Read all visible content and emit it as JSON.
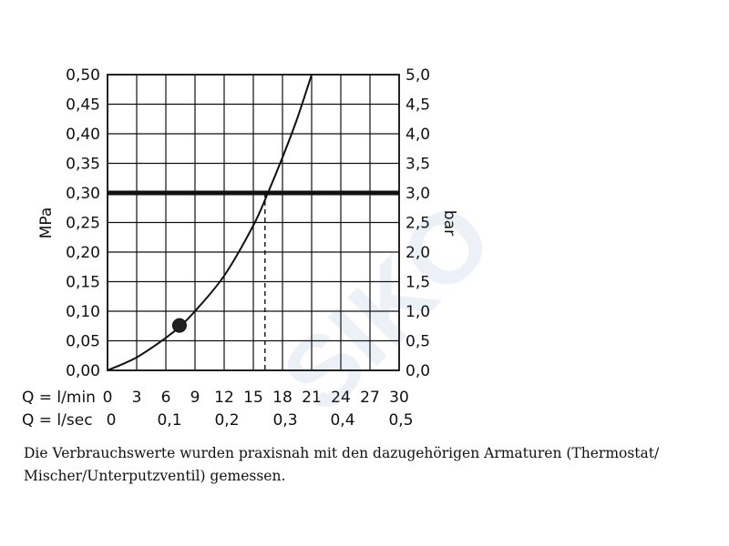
{
  "chart_data": {
    "type": "line",
    "y_left": {
      "label": "MPa",
      "ticks": [
        "0,00",
        "0,05",
        "0,10",
        "0,15",
        "0,20",
        "0,25",
        "0,30",
        "0,35",
        "0,40",
        "0,45",
        "0,50"
      ],
      "range": [
        0,
        0.5
      ]
    },
    "y_right": {
      "label": "bar",
      "ticks": [
        "0,0",
        "0,5",
        "1,0",
        "1,5",
        "2,0",
        "2,5",
        "3,0",
        "3,5",
        "4,0",
        "4,5",
        "5,0"
      ],
      "range": [
        0,
        5
      ]
    },
    "x": {
      "range": [
        0,
        30
      ],
      "row1_label": "Q = l/min",
      "row1_ticks": [
        "0",
        "3",
        "6",
        "9",
        "12",
        "15",
        "18",
        "21",
        "24",
        "27",
        "30"
      ],
      "row2_label": "Q = l/sec",
      "row2_ticks": [
        "0",
        "0,1",
        "0,2",
        "0,3",
        "0,4",
        "0,5"
      ]
    },
    "grid": true,
    "series": [
      {
        "x": [
          0,
          3,
          6,
          7.5,
          9,
          12,
          15,
          16.5,
          18,
          19.5,
          21
        ],
        "y": [
          0,
          0.022,
          0.055,
          0.075,
          0.1,
          0.16,
          0.245,
          0.3,
          0.36,
          0.425,
          0.5
        ]
      }
    ],
    "reference_line": {
      "y": 0.3,
      "intersect_x": 16.2
    },
    "marker_point": {
      "x": 7.4,
      "y": 0.076
    }
  },
  "caption": "Die Verbrauchswerte wurden praxisnah mit den dazugehörigen Armaturen (Thermostat/ Mischer/Unterputzventil) gemessen.",
  "watermark": "SIKO"
}
